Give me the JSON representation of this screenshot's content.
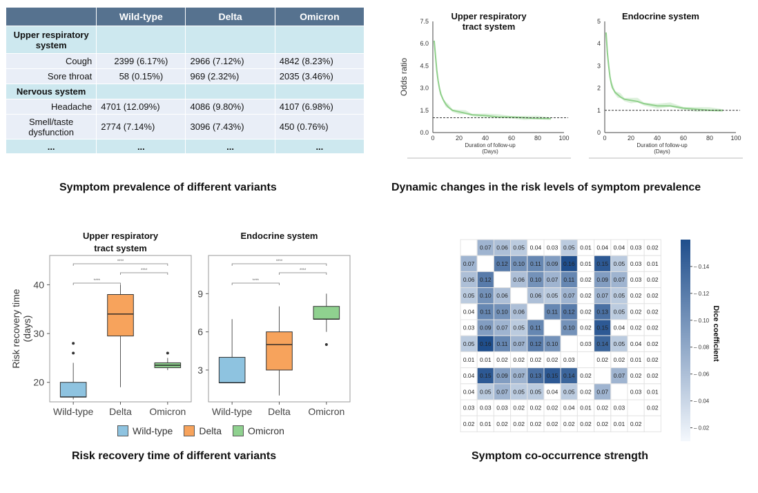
{
  "prevalence_table": {
    "headers": [
      "",
      "Wild-type",
      "Delta",
      "Omicron"
    ],
    "rows": [
      {
        "type": "group",
        "label": "Upper respiratory system"
      },
      {
        "type": "row",
        "label": "Cough",
        "cells": [
          "2399 (6.17%)",
          "2966  (7.12%)",
          "4842  (8.23%)"
        ]
      },
      {
        "type": "row",
        "label": "Sore throat",
        "cells": [
          "58  (0.15%)",
          "969  (2.32%)",
          "2035  (3.46%)"
        ]
      },
      {
        "type": "group",
        "label": "Nervous system"
      },
      {
        "type": "row",
        "label": "Headache",
        "cells": [
          "4701  (12.09%)",
          "4086  (9.80%)",
          "4107  (6.98%)"
        ]
      },
      {
        "type": "row",
        "label": "Smell/taste dysfunction",
        "cells": [
          "2774  (7.14%)",
          "3096  (7.43%)",
          "450  (0.76%)"
        ]
      },
      {
        "type": "dots",
        "cells": [
          "...",
          "...",
          "...",
          "..."
        ]
      }
    ]
  },
  "captions": {
    "prevalence": "Symptom prevalence of different variants",
    "dynamic": "Dynamic changes in the risk levels of symptom prevalence",
    "recovery": "Risk recovery time of different variants",
    "cooccurrence": "Symptom co-occurrence strength"
  },
  "colors": {
    "table_header": "#56728f",
    "group_row": "#cde8ef",
    "data_row": "#e9eef7",
    "line_green": "#8fcf8a",
    "wild_type": "#8ec3e0",
    "delta": "#f7a35c",
    "omicron": "#8fd18f",
    "heat_low": "#f4f8fd",
    "heat_high": "#1f4e8c"
  },
  "chart_data": [
    {
      "type": "line",
      "title": "Upper respiratory tract system",
      "xlabel": "Duration of follow-up (Days)",
      "ylabel": "Odds ratio",
      "xlim": [
        0,
        100
      ],
      "ylim": [
        0,
        7.5
      ],
      "xticks": [
        "0",
        "20",
        "40",
        "60",
        "80",
        "100"
      ],
      "yticks": [
        "0.0",
        "1.5",
        "3.0",
        "4.5",
        "6.0",
        "7.5"
      ],
      "reference_line": 1.0,
      "series": [
        {
          "x": [
            1,
            2,
            3,
            4,
            5,
            6,
            8,
            10,
            12,
            15,
            20,
            25,
            30,
            40,
            50,
            60,
            70,
            80,
            90
          ],
          "y": [
            6.2,
            5.2,
            4.2,
            3.5,
            3.0,
            2.6,
            2.2,
            1.9,
            1.7,
            1.5,
            1.4,
            1.3,
            1.2,
            1.15,
            1.05,
            1.05,
            1.0,
            0.95,
            0.95
          ]
        }
      ]
    },
    {
      "type": "line",
      "title": "Endocrine system",
      "xlabel": "Duration of follow-up (Days)",
      "xlim": [
        0,
        100
      ],
      "ylim": [
        0,
        5
      ],
      "xticks": [
        "0",
        "20",
        "40",
        "60",
        "80",
        "100"
      ],
      "yticks": [
        "0",
        "1",
        "2",
        "3",
        "4",
        "5"
      ],
      "reference_line": 1.0,
      "series": [
        {
          "x": [
            1,
            2,
            3,
            4,
            5,
            6,
            8,
            10,
            12,
            15,
            20,
            25,
            30,
            40,
            50,
            60,
            70,
            80,
            90
          ],
          "y": [
            4.5,
            3.6,
            3.0,
            2.5,
            2.2,
            2.0,
            1.8,
            1.7,
            1.6,
            1.5,
            1.45,
            1.4,
            1.3,
            1.2,
            1.2,
            1.1,
            1.05,
            1.0,
            1.0
          ]
        }
      ]
    },
    {
      "type": "box",
      "title": "Upper respiratory tract system",
      "ylabel": "Risk recovery time (days)",
      "categories": [
        "Wild-type",
        "Delta",
        "Omicron"
      ],
      "yticks": [
        "20",
        "30",
        "40"
      ],
      "ylim": [
        16,
        46
      ],
      "boxes": [
        {
          "min": 16.5,
          "q1": 17,
          "median": 17,
          "q3": 20,
          "max": 24,
          "outliers": [
            26,
            28
          ]
        },
        {
          "min": 19,
          "q1": 29.5,
          "median": 34,
          "q3": 38,
          "max": 40,
          "outliers": []
        },
        {
          "min": 22.5,
          "q1": 23,
          "median": 23.5,
          "q3": 24,
          "max": 25,
          "outliers": [
            26
          ]
        }
      ],
      "significance": [
        "****",
        "****",
        "****"
      ]
    },
    {
      "type": "box",
      "title": "Endocrine system",
      "categories": [
        "Wild-type",
        "Delta",
        "Omicron"
      ],
      "yticks": [
        "3",
        "6",
        "9"
      ],
      "ylim": [
        0.5,
        12
      ],
      "boxes": [
        {
          "min": 2,
          "q1": 2,
          "median": 2,
          "q3": 4,
          "max": 7,
          "outliers": []
        },
        {
          "min": 1,
          "q1": 3,
          "median": 5,
          "q3": 6,
          "max": 8,
          "outliers": []
        },
        {
          "min": 6,
          "q1": 7,
          "median": 7,
          "q3": 8,
          "max": 9,
          "outliers": [
            5
          ]
        }
      ],
      "significance": [
        "****",
        "****",
        "****"
      ]
    },
    {
      "type": "heatmap",
      "colorbar_label": "Dice coefficient",
      "colorbar_ticks": [
        "0.14",
        "0.12",
        "0.10",
        "0.08",
        "0.06",
        "0.04",
        "0.02"
      ],
      "vmin": 0.01,
      "vmax": 0.16,
      "values": [
        [
          "",
          "0.07",
          "0.06",
          "0.05",
          "0.04",
          "0.03",
          "0.05",
          "0.01",
          "0.04",
          "0.04",
          "0.03",
          "0.02"
        ],
        [
          "0.07",
          "",
          "0.12",
          "0.10",
          "0.11",
          "0.09",
          "0.16",
          "0.01",
          "0.15",
          "0.05",
          "0.03",
          "0.01"
        ],
        [
          "0.06",
          "0.12",
          "",
          "0.06",
          "0.10",
          "0.07",
          "0.11",
          "0.02",
          "0.09",
          "0.07",
          "0.03",
          "0.02"
        ],
        [
          "0.05",
          "0.10",
          "0.06",
          "",
          "0.06",
          "0.05",
          "0.07",
          "0.02",
          "0.07",
          "0.05",
          "0.02",
          "0.02"
        ],
        [
          "0.04",
          "0.11",
          "0.10",
          "0.06",
          "",
          "0.11",
          "0.12",
          "0.02",
          "0.13",
          "0.05",
          "0.02",
          "0.02"
        ],
        [
          "0.03",
          "0.09",
          "0.07",
          "0.05",
          "0.11",
          "",
          "0.10",
          "0.02",
          "0.15",
          "0.04",
          "0.02",
          "0.02"
        ],
        [
          "0.05",
          "0.16",
          "0.11",
          "0.07",
          "0.12",
          "0.10",
          "",
          "0.03",
          "0.14",
          "0.05",
          "0.04",
          "0.02"
        ],
        [
          "0.01",
          "0.01",
          "0.02",
          "0.02",
          "0.02",
          "0.02",
          "0.03",
          "",
          "0.02",
          "0.02",
          "0.01",
          "0.02"
        ],
        [
          "0.04",
          "0.15",
          "0.09",
          "0.07",
          "0.13",
          "0.15",
          "0.14",
          "0.02",
          "",
          "0.07",
          "0.02",
          "0.02"
        ],
        [
          "0.04",
          "0.05",
          "0.07",
          "0.05",
          "0.05",
          "0.04",
          "0.05",
          "0.02",
          "0.07",
          "",
          "0.03",
          "0.01"
        ],
        [
          "0.03",
          "0.03",
          "0.03",
          "0.02",
          "0.02",
          "0.02",
          "0.04",
          "0.01",
          "0.02",
          "0.03",
          "",
          "0.02"
        ],
        [
          "0.02",
          "0.01",
          "0.02",
          "0.02",
          "0.02",
          "0.02",
          "0.02",
          "0.02",
          "0.02",
          "0.01",
          "0.02",
          ""
        ]
      ]
    }
  ]
}
